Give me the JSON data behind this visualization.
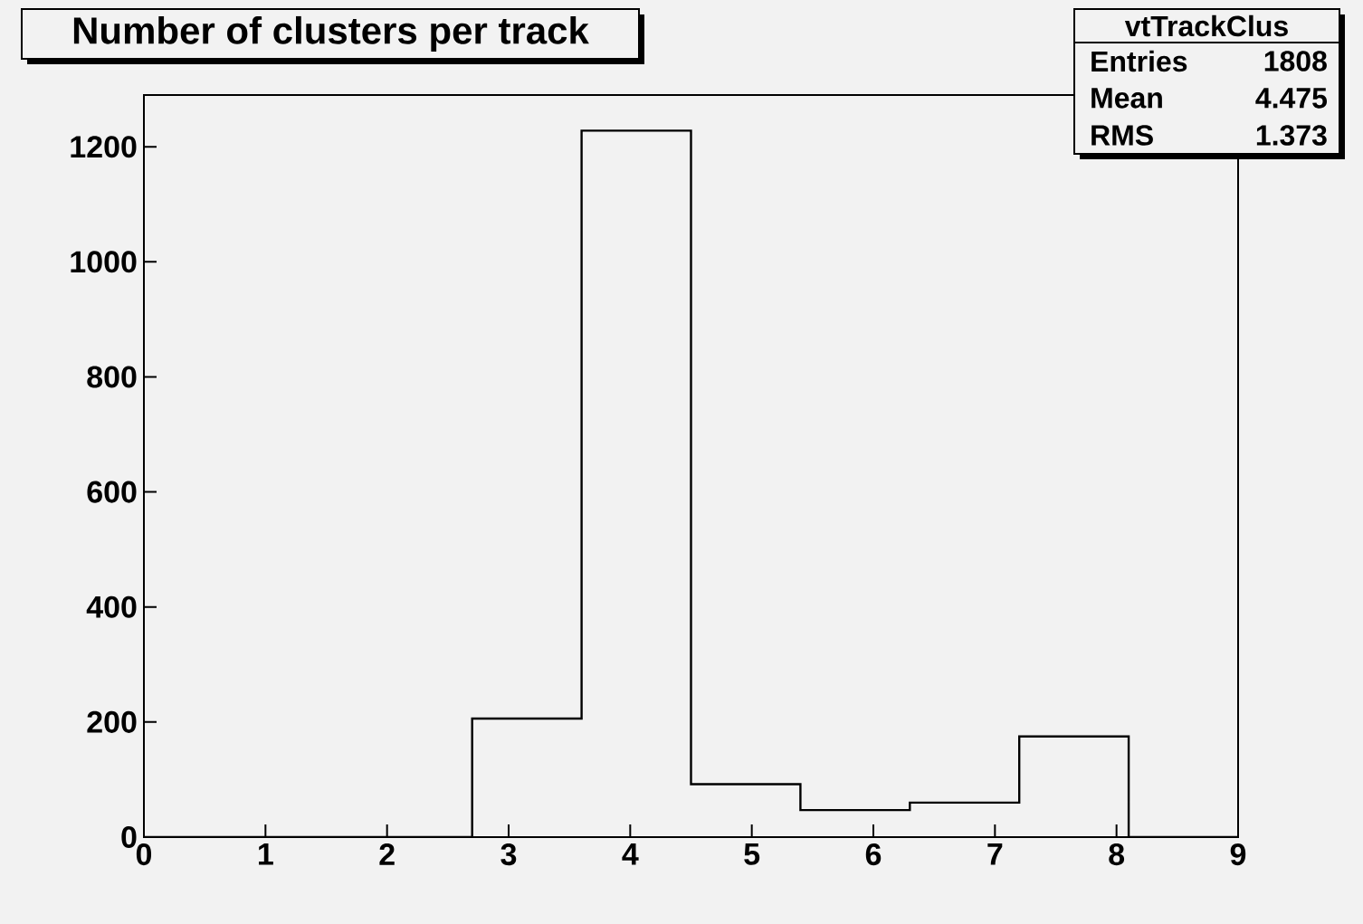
{
  "chart_data": {
    "type": "histogram",
    "title": "Number of clusters per track",
    "annotations": [
      "vtTrackClus",
      "Entries",
      "1808",
      "Mean",
      "4.475",
      "RMS",
      "1.373"
    ],
    "bins": [
      0,
      0.9,
      1.8,
      2.7,
      3.6,
      4.5,
      5.4,
      6.3,
      7.2,
      8.1,
      9.0
    ],
    "values": [
      0,
      0,
      0,
      206,
      1228,
      92,
      47,
      60,
      175,
      0
    ],
    "color": "#000000",
    "xlim": [
      0,
      9
    ],
    "ylim": [
      0,
      1290
    ],
    "xticks": [
      0,
      1,
      2,
      3,
      4,
      5,
      6,
      7,
      8,
      9
    ],
    "yticks": [
      0,
      200,
      400,
      600,
      800,
      1000,
      1200
    ]
  }
}
